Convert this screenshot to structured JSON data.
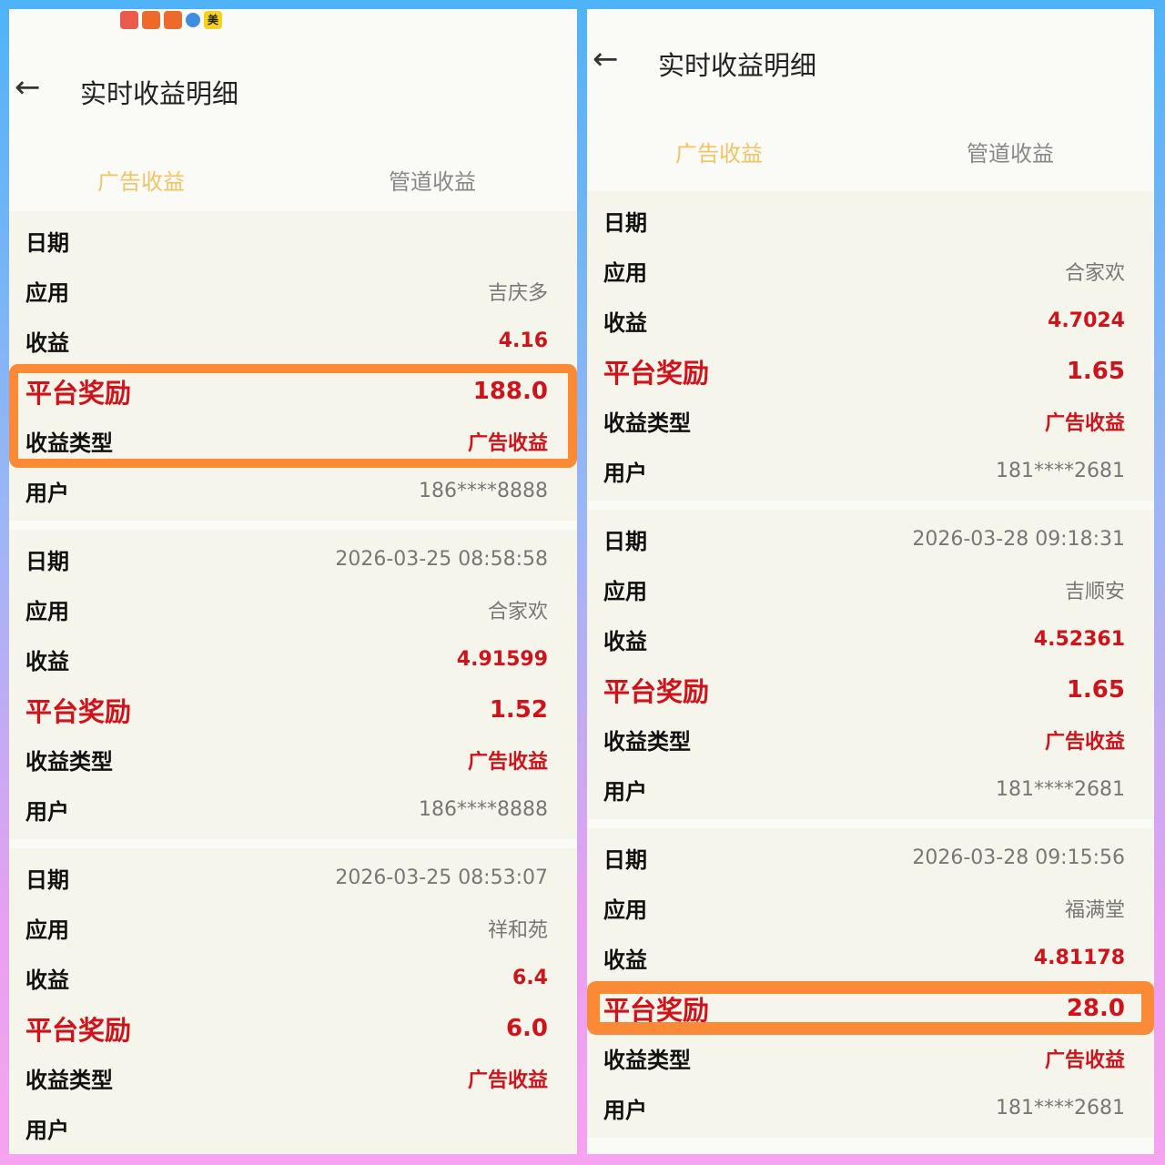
{
  "left": {
    "status_icons": [
      "huawei-app-icon",
      "app-icon",
      "app-icon",
      "telegram-icon",
      "meituan-icon"
    ],
    "status_meituan": "美",
    "title": "实时收益明细",
    "tabs": [
      {
        "label": "广告收益",
        "active": true
      },
      {
        "label": "管道收益",
        "active": false
      }
    ],
    "cards": [
      {
        "rows": [
          {
            "k": "日期",
            "v": ""
          },
          {
            "k": "应用",
            "v": "吉庆多"
          },
          {
            "k": "收益",
            "v": "4.16"
          },
          {
            "k": "平台奖励",
            "v": "188.0"
          },
          {
            "k": "收益类型",
            "v": "广告收益"
          },
          {
            "k": "用户",
            "v": "186****8888"
          }
        ]
      },
      {
        "rows": [
          {
            "k": "日期",
            "v": "2026-03-25 08:58:58"
          },
          {
            "k": "应用",
            "v": "合家欢"
          },
          {
            "k": "收益",
            "v": "4.91599"
          },
          {
            "k": "平台奖励",
            "v": "1.52"
          },
          {
            "k": "收益类型",
            "v": "广告收益"
          },
          {
            "k": "用户",
            "v": "186****8888"
          }
        ]
      },
      {
        "rows": [
          {
            "k": "日期",
            "v": "2026-03-25 08:53:07"
          },
          {
            "k": "应用",
            "v": "祥和苑"
          },
          {
            "k": "收益",
            "v": "6.4"
          },
          {
            "k": "平台奖励",
            "v": "6.0"
          },
          {
            "k": "收益类型",
            "v": "广告收益"
          },
          {
            "k": "用户",
            "v": ""
          }
        ]
      }
    ]
  },
  "right": {
    "title": "实时收益明细",
    "tabs": [
      {
        "label": "广告收益",
        "active": true
      },
      {
        "label": "管道收益",
        "active": false
      }
    ],
    "cards": [
      {
        "rows": [
          {
            "k": "日期",
            "v": ""
          },
          {
            "k": "应用",
            "v": "合家欢"
          },
          {
            "k": "收益",
            "v": "4.7024"
          },
          {
            "k": "平台奖励",
            "v": "1.65"
          },
          {
            "k": "收益类型",
            "v": "广告收益"
          },
          {
            "k": "用户",
            "v": "181****2681"
          }
        ]
      },
      {
        "rows": [
          {
            "k": "日期",
            "v": "2026-03-28 09:18:31"
          },
          {
            "k": "应用",
            "v": "吉顺安"
          },
          {
            "k": "收益",
            "v": "4.52361"
          },
          {
            "k": "平台奖励",
            "v": "1.65"
          },
          {
            "k": "收益类型",
            "v": "广告收益"
          },
          {
            "k": "用户",
            "v": "181****2681"
          }
        ]
      },
      {
        "rows": [
          {
            "k": "日期",
            "v": "2026-03-28 09:15:56"
          },
          {
            "k": "应用",
            "v": "福满堂"
          },
          {
            "k": "收益",
            "v": "4.81178"
          },
          {
            "k": "平台奖励",
            "v": "28.0"
          },
          {
            "k": "收益类型",
            "v": "广告收益"
          },
          {
            "k": "用户",
            "v": "181****2681"
          }
        ]
      }
    ]
  },
  "colors": {
    "highlight": "#fb8a36",
    "reward": "#d0121b",
    "active_tab": "#f0c466"
  }
}
